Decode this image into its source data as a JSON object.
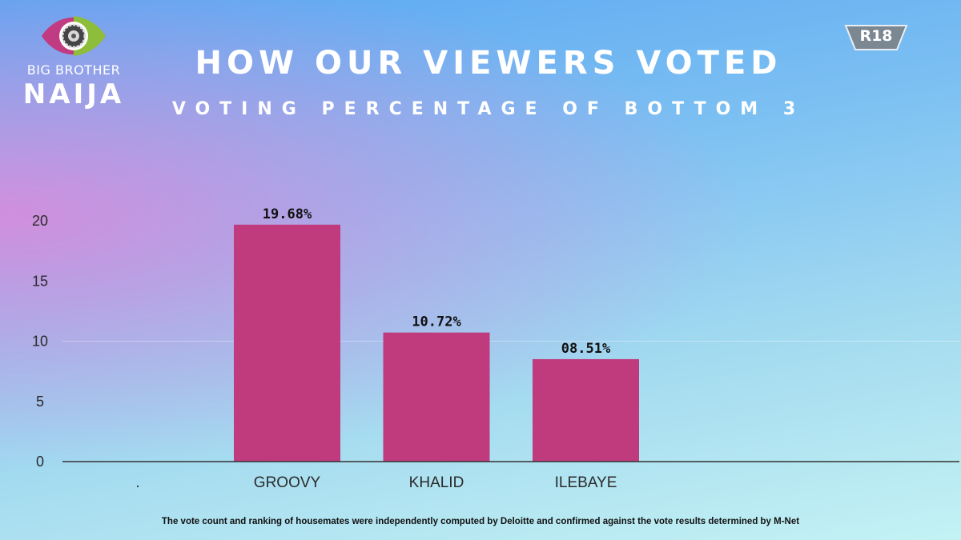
{
  "logo": {
    "line1": "BIG BROTHER",
    "line2": "NAIJA",
    "icon": "eye-icon",
    "colors": [
      "#c13b82",
      "#8dbd3a"
    ]
  },
  "rating": {
    "label": "R18",
    "icon": "rating-badge-icon"
  },
  "header": {
    "title": "HOW OUR VIEWERS VOTED",
    "subtitle": "VOTING PERCENTAGE OF BOTTOM 3"
  },
  "footnote": "The vote count and ranking of housemates were independently computed by Deloitte and confirmed against the vote results determined by M-Net",
  "chart_data": {
    "type": "bar",
    "title": "",
    "xlabel": "",
    "ylabel": "",
    "categories": [
      ".",
      "GROOVY",
      "KHALID",
      "ILEBAYE"
    ],
    "values": [
      null,
      19.68,
      10.72,
      8.51
    ],
    "data_labels": [
      "",
      "19.68%",
      "10.72%",
      "08.51%"
    ],
    "yticks": [
      "0",
      "5",
      "10",
      "15",
      "20"
    ],
    "ytick_values": [
      0,
      5,
      10,
      15,
      20
    ],
    "ylim": [
      0,
      20
    ],
    "grid": false,
    "legend": "none",
    "bar_color": "#c03a7e"
  }
}
